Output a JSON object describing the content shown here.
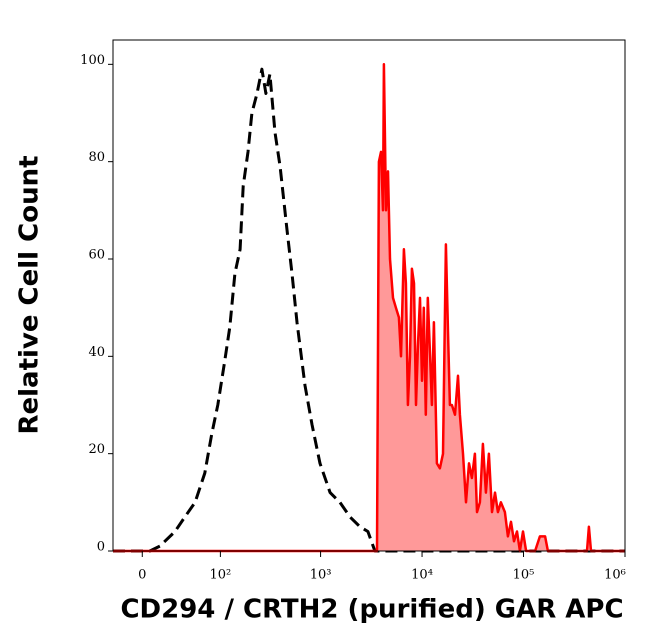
{
  "chart_data": {
    "type": "line",
    "xscale": "biexponential",
    "xlabel": "CD294 / CRTH2 (purified) GAR APC",
    "ylabel": "Relative Cell Count",
    "xlim": [
      -25,
      1000000
    ],
    "ylim": [
      0,
      105
    ],
    "xticks": [
      0,
      {
        "value": 100,
        "label": "10²"
      },
      {
        "value": 1000,
        "label": "10³"
      },
      {
        "value": 10000,
        "label": "10⁴"
      },
      {
        "value": 100000,
        "label": "10⁵"
      },
      {
        "value": 1000000,
        "label": "10⁶"
      }
    ],
    "yticks": [
      0,
      20,
      40,
      60,
      80,
      100
    ],
    "series": [
      {
        "color": "#000000",
        "dashed": true,
        "filled": false,
        "x": [
          -25,
          6.1,
          14.4,
          28.4,
          39.4,
          52.7,
          68,
          81,
          94,
          111,
          125,
          141,
          159,
          171,
          191,
          209,
          235,
          263,
          288,
          316,
          355,
          398,
          466,
          522,
          585,
          702,
          822,
          987,
          1240,
          1550,
          1950,
          2440,
          2930,
          3430,
          3850,
          1000000
        ],
        "values": [
          0,
          0,
          1,
          4,
          7,
          10,
          16,
          24,
          30,
          39,
          46,
          57,
          62,
          75,
          82,
          90,
          94,
          99,
          94,
          98,
          86,
          79,
          66,
          57,
          47,
          34,
          26,
          18,
          12,
          10,
          7,
          5,
          4,
          0,
          0,
          0
        ]
      },
      {
        "color": "#ff0000",
        "fill": "#ff9999",
        "dashed": false,
        "filled": true,
        "x": [
          -25,
          3600,
          3760,
          3940,
          4120,
          4210,
          4410,
          4620,
          4830,
          5170,
          5530,
          5920,
          6200,
          6630,
          6940,
          7260,
          7600,
          7950,
          8330,
          8710,
          9110,
          9540,
          9980,
          10400,
          10900,
          11400,
          12000,
          12500,
          13100,
          14000,
          15000,
          16100,
          17200,
          18000,
          18800,
          19700,
          21100,
          22600,
          23600,
          25300,
          27100,
          29000,
          31000,
          33200,
          34800,
          37200,
          39800,
          42600,
          45600,
          48900,
          52300,
          55900,
          59900,
          65600,
          70200,
          75200,
          80500,
          86200,
          92200,
          98800,
          106000,
          130000,
          145000,
          163000,
          174000,
          422000,
          441000,
          462000,
          1000000
        ],
        "values": [
          0,
          0,
          80,
          82,
          70,
          100,
          70,
          78,
          60,
          52,
          50,
          48,
          40,
          62,
          55,
          30,
          40,
          58,
          55,
          30,
          42,
          52,
          35,
          50,
          28,
          52,
          40,
          30,
          47,
          18,
          17,
          20,
          63,
          45,
          30,
          30,
          28,
          36,
          28,
          20,
          10,
          18,
          15,
          20,
          8,
          10,
          22,
          12,
          20,
          8,
          12,
          8,
          10,
          8,
          3,
          6,
          2,
          4,
          0,
          4,
          0,
          0,
          3,
          3,
          0,
          0,
          5,
          0,
          0
        ]
      }
    ]
  }
}
